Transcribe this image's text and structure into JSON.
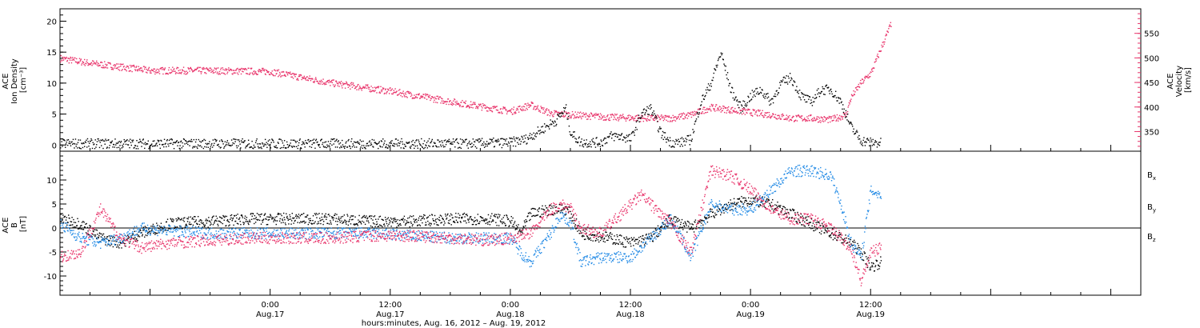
{
  "colors": {
    "black": "#000000",
    "pink": "#e8336a",
    "blue": "#1e88e5"
  },
  "xaxis": {
    "title": "hours:minutes, Aug. 16, 2012 – Aug. 19, 2012",
    "range_hours": [
      -21,
      87
    ],
    "ticks": [
      {
        "h": 0,
        "time": "0:00",
        "date": "Aug.17"
      },
      {
        "h": 12,
        "time": "12:00",
        "date": "Aug.17"
      },
      {
        "h": 24,
        "time": "0:00",
        "date": "Aug.18"
      },
      {
        "h": 36,
        "time": "12:00",
        "date": "Aug.18"
      },
      {
        "h": 48,
        "time": "0:00",
        "date": "Aug.19"
      },
      {
        "h": 60,
        "time": "12:00",
        "date": "Aug.19"
      }
    ]
  },
  "chart_data": [
    {
      "type": "scatter",
      "panel": "top",
      "ylabel_lines": [
        "ACE",
        "Ion Density",
        "[cm⁻³]"
      ],
      "ylim": [
        -1,
        22
      ],
      "yticks": [
        0,
        5,
        10,
        15,
        20
      ],
      "y2label_lines": [
        "ACE",
        "Velocity",
        "[km/s]"
      ],
      "y2lim": [
        310,
        600
      ],
      "y2ticks": [
        350,
        400,
        450,
        500,
        550
      ],
      "series": [
        {
          "key": "density",
          "axis": "left",
          "color": "#000000",
          "points": [
            [
              -21,
              0.3
            ],
            [
              -10,
              0.3
            ],
            [
              0,
              0.3
            ],
            [
              10,
              0.3
            ],
            [
              20,
              0.3
            ],
            [
              22,
              0.4
            ],
            [
              24,
              0.5
            ],
            [
              25.5,
              1
            ],
            [
              27,
              2.5
            ],
            [
              28.5,
              4
            ],
            [
              29.5,
              6
            ],
            [
              30,
              2
            ],
            [
              31,
              0.5
            ],
            [
              33,
              0.5
            ],
            [
              34,
              1.5
            ],
            [
              35,
              1.5
            ],
            [
              36,
              1
            ],
            [
              37,
              5
            ],
            [
              38,
              6
            ],
            [
              39,
              2
            ],
            [
              40,
              0.5
            ],
            [
              41,
              0.5
            ],
            [
              42,
              1
            ],
            [
              43,
              7
            ],
            [
              44,
              10
            ],
            [
              45,
              15
            ],
            [
              46,
              9
            ],
            [
              47,
              6
            ],
            [
              48,
              8
            ],
            [
              49,
              9
            ],
            [
              50,
              7
            ],
            [
              51,
              10
            ],
            [
              52,
              11
            ],
            [
              53,
              8
            ],
            [
              54,
              7
            ],
            [
              55,
              9
            ],
            [
              56,
              9
            ],
            [
              57,
              7
            ],
            [
              58,
              3
            ],
            [
              59,
              0.8
            ],
            [
              60,
              0.5
            ],
            [
              61,
              0.4
            ]
          ]
        },
        {
          "key": "velocity",
          "axis": "right",
          "color": "#e8336a",
          "points": [
            [
              -21,
              500
            ],
            [
              -18,
              490
            ],
            [
              -12,
              475
            ],
            [
              -6,
              475
            ],
            [
              0,
              473
            ],
            [
              6,
              450
            ],
            [
              12,
              433
            ],
            [
              18,
              412
            ],
            [
              24,
              392
            ],
            [
              26,
              405
            ],
            [
              28,
              388
            ],
            [
              30,
              385
            ],
            [
              34,
              380
            ],
            [
              38,
              378
            ],
            [
              40,
              378
            ],
            [
              42,
              385
            ],
            [
              44,
              400
            ],
            [
              46,
              395
            ],
            [
              48,
              390
            ],
            [
              50,
              385
            ],
            [
              52,
              378
            ],
            [
              54,
              378
            ],
            [
              56,
              375
            ],
            [
              57.5,
              385
            ],
            [
              58,
              420
            ],
            [
              59,
              450
            ],
            [
              60,
              470
            ],
            [
              61,
              520
            ],
            [
              62,
              570
            ]
          ]
        }
      ]
    },
    {
      "type": "line",
      "panel": "bottom",
      "ylabel_lines": [
        "ACE",
        "B",
        "[nT]"
      ],
      "ylim": [
        -14,
        16
      ],
      "yticks": [
        -10,
        -5,
        0,
        5,
        10
      ],
      "series": [
        {
          "name": "B",
          "sub": "x",
          "color": "#000000",
          "points": [
            [
              -21,
              2
            ],
            [
              -19,
              1
            ],
            [
              -17,
              -2
            ],
            [
              -15,
              -3
            ],
            [
              -13,
              -1
            ],
            [
              -10,
              1
            ],
            [
              -6,
              1.5
            ],
            [
              -2,
              2
            ],
            [
              2,
              2
            ],
            [
              6,
              2
            ],
            [
              10,
              1.5
            ],
            [
              14,
              1.5
            ],
            [
              18,
              2
            ],
            [
              22,
              2
            ],
            [
              24,
              1.5
            ],
            [
              25,
              -1
            ],
            [
              26,
              3
            ],
            [
              28,
              4
            ],
            [
              29.5,
              4
            ],
            [
              30,
              3
            ],
            [
              31,
              -1
            ],
            [
              34,
              -2
            ],
            [
              36,
              -3
            ],
            [
              38,
              -2
            ],
            [
              40,
              2
            ],
            [
              42,
              0
            ],
            [
              44,
              3
            ],
            [
              46,
              5
            ],
            [
              48,
              6
            ],
            [
              50,
              5
            ],
            [
              52,
              3
            ],
            [
              54,
              1
            ],
            [
              56,
              -1
            ],
            [
              58,
              -3
            ],
            [
              59,
              -5
            ],
            [
              60,
              -8
            ],
            [
              61,
              -7
            ]
          ]
        },
        {
          "name": "B",
          "sub": "y",
          "color": "#1e88e5",
          "points": [
            [
              -21,
              1
            ],
            [
              -19,
              -2
            ],
            [
              -17,
              -3
            ],
            [
              -15,
              -2
            ],
            [
              -13,
              0
            ],
            [
              -10,
              -0.5
            ],
            [
              -6,
              -1
            ],
            [
              -2,
              -1
            ],
            [
              2,
              -1
            ],
            [
              6,
              -1
            ],
            [
              10,
              -1
            ],
            [
              14,
              -1.5
            ],
            [
              18,
              -2
            ],
            [
              22,
              -2
            ],
            [
              24,
              -2
            ],
            [
              25,
              -5
            ],
            [
              26,
              -7
            ],
            [
              27,
              -4
            ],
            [
              28,
              -1
            ],
            [
              29,
              3
            ],
            [
              30,
              1
            ],
            [
              31,
              -7
            ],
            [
              33,
              -6
            ],
            [
              36,
              -6
            ],
            [
              38,
              -2
            ],
            [
              40,
              2
            ],
            [
              42,
              -6
            ],
            [
              44,
              5
            ],
            [
              46,
              4
            ],
            [
              48,
              4
            ],
            [
              50,
              8
            ],
            [
              52,
              12
            ],
            [
              54,
              12
            ],
            [
              56,
              11
            ],
            [
              57,
              5
            ],
            [
              58,
              -3
            ],
            [
              59,
              -6
            ],
            [
              60,
              8
            ],
            [
              61,
              7
            ]
          ]
        },
        {
          "name": "B",
          "sub": "z",
          "color": "#e8336a",
          "points": [
            [
              -21,
              -6
            ],
            [
              -19,
              -5
            ],
            [
              -17,
              4
            ],
            [
              -15,
              -2
            ],
            [
              -13,
              -4
            ],
            [
              -10,
              -3
            ],
            [
              -6,
              -2.5
            ],
            [
              -2,
              -2
            ],
            [
              2,
              -2
            ],
            [
              6,
              -2
            ],
            [
              10,
              -1.5
            ],
            [
              14,
              -1.5
            ],
            [
              18,
              -2
            ],
            [
              22,
              -2.5
            ],
            [
              24,
              -2
            ],
            [
              26,
              -1
            ],
            [
              28,
              4
            ],
            [
              29,
              5
            ],
            [
              30,
              4
            ],
            [
              31,
              0
            ],
            [
              33,
              -1
            ],
            [
              35,
              3
            ],
            [
              37,
              7
            ],
            [
              38,
              5
            ],
            [
              40,
              1
            ],
            [
              42,
              -5
            ],
            [
              44,
              12
            ],
            [
              46,
              11
            ],
            [
              48,
              8
            ],
            [
              50,
              4
            ],
            [
              52,
              2
            ],
            [
              54,
              2
            ],
            [
              56,
              0
            ],
            [
              58,
              -4
            ],
            [
              59,
              -11
            ],
            [
              60,
              -5
            ],
            [
              61,
              -4
            ]
          ]
        }
      ]
    }
  ]
}
